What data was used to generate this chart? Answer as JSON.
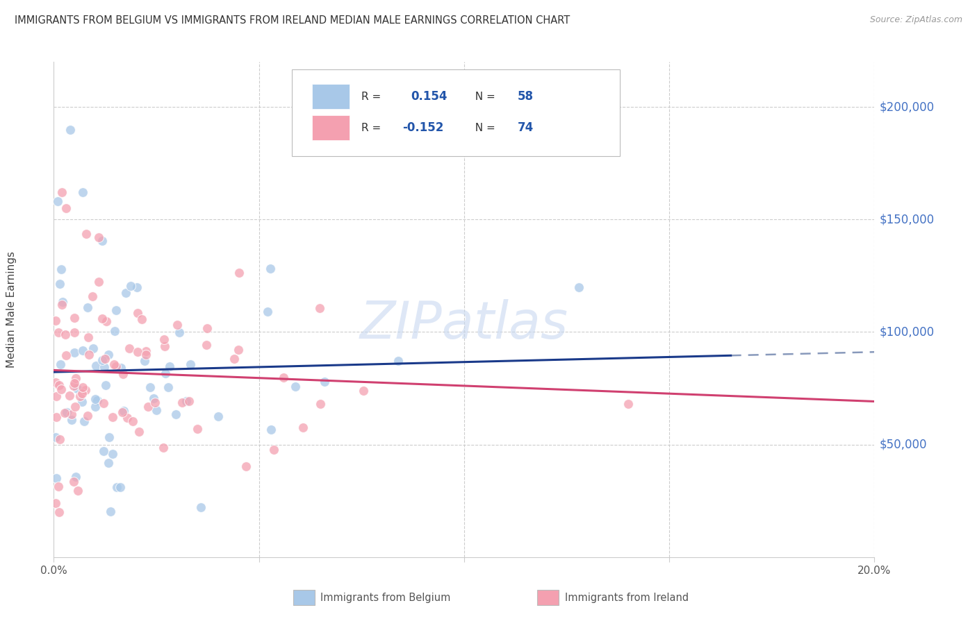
{
  "title": "IMMIGRANTS FROM BELGIUM VS IMMIGRANTS FROM IRELAND MEDIAN MALE EARNINGS CORRELATION CHART",
  "source": "Source: ZipAtlas.com",
  "ylabel": "Median Male Earnings",
  "xlim": [
    0.0,
    0.2
  ],
  "ylim": [
    0,
    220000
  ],
  "ytick_vals": [
    50000,
    100000,
    150000,
    200000
  ],
  "ytick_labels": [
    "$50,000",
    "$100,000",
    "$150,000",
    "$200,000"
  ],
  "xtick_vals": [
    0.0,
    0.05,
    0.1,
    0.15,
    0.2
  ],
  "xtick_labels": [
    "0.0%",
    "",
    "",
    "",
    "20.0%"
  ],
  "blue_R": 0.154,
  "blue_N": 58,
  "pink_R": -0.152,
  "pink_N": 74,
  "blue_color": "#a8c8e8",
  "pink_color": "#f4a0b0",
  "blue_line_color": "#1a3a8a",
  "pink_line_color": "#d04070",
  "dash_color": "#8899bb",
  "watermark_color": "#c8d8f0",
  "grid_color": "#cccccc",
  "background_color": "#ffffff",
  "title_color": "#333333",
  "source_color": "#999999",
  "ytick_color": "#4472c4",
  "legend_border_color": "#bbbbbb",
  "legend_text_color": "#333333",
  "legend_val_color": "#2255aa"
}
